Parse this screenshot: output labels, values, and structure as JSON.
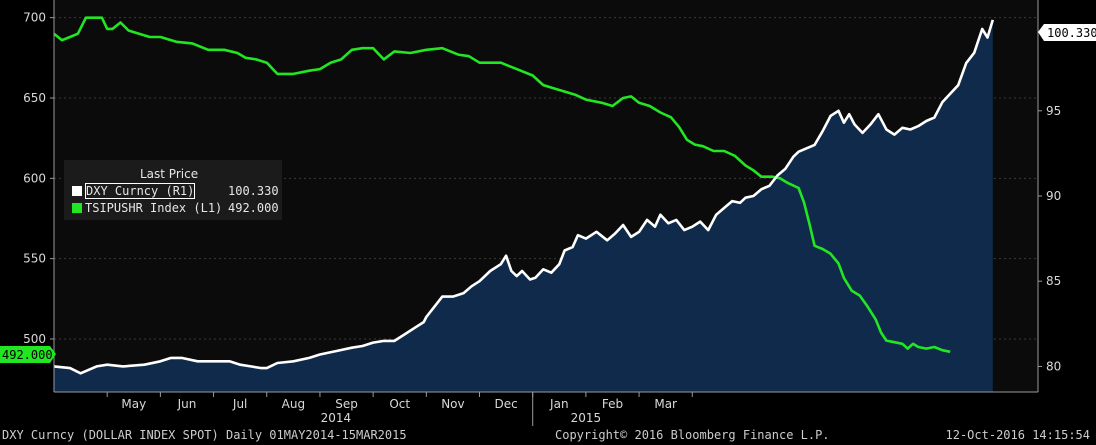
{
  "footer": {
    "left": "DXY Curncy (DOLLAR INDEX SPOT)  Daily 01MAY2014-15MAR2015",
    "center": "Copyright© 2016 Bloomberg Finance L.P.",
    "right": "12-Oct-2016 14:15:54"
  },
  "legend": {
    "title": "Last Price",
    "items": [
      {
        "label": "DXY Curncy  (R1)",
        "value": "100.330",
        "color": "#ffffff"
      },
      {
        "label": "TSIPUSHR Index  (L1)",
        "value": "492.000",
        "color": "#22e622"
      }
    ]
  },
  "last_value_tags": {
    "right": "100.330",
    "left": "492.000"
  },
  "colors": {
    "background": "#000000",
    "plot_bg": "#0b0b0b",
    "area": "#0f2a4a",
    "dxy_line": "#ffffff",
    "tsi_line": "#22e622"
  },
  "chart_data": {
    "type": "line",
    "x_ticks": [
      "May",
      "Jun",
      "Jul",
      "Aug",
      "Sep",
      "Oct",
      "Nov",
      "Dec",
      "Jan",
      "Feb",
      "Mar"
    ],
    "x_year_labels": [
      "2014",
      "2015"
    ],
    "y_left": {
      "ticks": [
        500,
        550,
        600,
        650,
        700
      ],
      "range": [
        467,
        711
      ]
    },
    "y_right": {
      "ticks": [
        80,
        85,
        90,
        95
      ],
      "range": [
        78.5,
        101.5
      ]
    },
    "series": [
      {
        "name": "DXY Curncy (R1)",
        "axis": "right",
        "style": "area",
        "points": [
          [
            0.0,
            80.0
          ],
          [
            0.3,
            79.9
          ],
          [
            0.5,
            79.6
          ],
          [
            0.8,
            80.0
          ],
          [
            1.0,
            80.1
          ],
          [
            1.3,
            80.0
          ],
          [
            1.7,
            80.1
          ],
          [
            2.0,
            80.3
          ],
          [
            2.2,
            80.5
          ],
          [
            2.4,
            80.5
          ],
          [
            2.7,
            80.3
          ],
          [
            3.0,
            80.3
          ],
          [
            3.3,
            80.3
          ],
          [
            3.5,
            80.1
          ],
          [
            3.7,
            80.0
          ],
          [
            3.9,
            79.9
          ],
          [
            4.0,
            79.9
          ],
          [
            4.2,
            80.2
          ],
          [
            4.5,
            80.3
          ],
          [
            4.8,
            80.5
          ],
          [
            5.0,
            80.7
          ],
          [
            5.3,
            80.9
          ],
          [
            5.6,
            81.1
          ],
          [
            5.8,
            81.2
          ],
          [
            6.0,
            81.4
          ],
          [
            6.2,
            81.5
          ],
          [
            6.4,
            81.5
          ],
          [
            6.6,
            81.9
          ],
          [
            6.8,
            82.3
          ],
          [
            6.95,
            82.6
          ],
          [
            7.0,
            82.9
          ],
          [
            7.15,
            83.5
          ],
          [
            7.3,
            84.1
          ],
          [
            7.5,
            84.1
          ],
          [
            7.7,
            84.3
          ],
          [
            7.85,
            84.7
          ],
          [
            8.0,
            85.0
          ],
          [
            8.2,
            85.6
          ],
          [
            8.4,
            86.0
          ],
          [
            8.5,
            86.5
          ],
          [
            8.6,
            85.6
          ],
          [
            8.7,
            85.3
          ],
          [
            8.8,
            85.6
          ],
          [
            8.95,
            85.1
          ],
          [
            9.05,
            85.2
          ],
          [
            9.2,
            85.7
          ],
          [
            9.35,
            85.5
          ],
          [
            9.5,
            86.0
          ],
          [
            9.6,
            86.8
          ],
          [
            9.75,
            87.0
          ],
          [
            9.85,
            87.7
          ],
          [
            10.0,
            87.5
          ],
          [
            10.2,
            87.9
          ],
          [
            10.4,
            87.4
          ],
          [
            10.55,
            87.8
          ],
          [
            10.7,
            88.3
          ],
          [
            10.85,
            87.6
          ],
          [
            11.0,
            87.9
          ],
          [
            11.15,
            88.6
          ],
          [
            11.3,
            88.2
          ],
          [
            11.4,
            88.9
          ],
          [
            11.55,
            88.4
          ],
          [
            11.7,
            88.6
          ],
          [
            11.85,
            88.0
          ],
          [
            12.0,
            88.2
          ],
          [
            12.15,
            88.5
          ],
          [
            12.3,
            88.0
          ],
          [
            12.45,
            88.9
          ],
          [
            12.6,
            89.3
          ],
          [
            12.75,
            89.7
          ],
          [
            12.9,
            89.6
          ],
          [
            13.0,
            89.9
          ],
          [
            13.15,
            90.0
          ],
          [
            13.3,
            90.4
          ],
          [
            13.45,
            90.6
          ],
          [
            13.6,
            91.2
          ],
          [
            13.75,
            91.6
          ],
          [
            13.9,
            92.3
          ],
          [
            14.0,
            92.6
          ],
          [
            14.15,
            92.8
          ],
          [
            14.3,
            93.0
          ],
          [
            14.45,
            93.8
          ],
          [
            14.6,
            94.7
          ],
          [
            14.75,
            95.0
          ],
          [
            14.85,
            94.3
          ],
          [
            14.95,
            94.8
          ],
          [
            15.05,
            94.2
          ],
          [
            15.2,
            93.7
          ],
          [
            15.35,
            94.2
          ],
          [
            15.5,
            94.8
          ],
          [
            15.65,
            93.9
          ],
          [
            15.8,
            93.6
          ],
          [
            15.95,
            94.0
          ],
          [
            16.1,
            93.9
          ],
          [
            16.25,
            94.1
          ],
          [
            16.4,
            94.4
          ],
          [
            16.55,
            94.6
          ],
          [
            16.7,
            95.5
          ],
          [
            16.85,
            96.0
          ],
          [
            17.0,
            96.5
          ],
          [
            17.15,
            97.8
          ],
          [
            17.3,
            98.4
          ],
          [
            17.45,
            99.8
          ],
          [
            17.55,
            99.3
          ],
          [
            17.65,
            100.33
          ]
        ]
      },
      {
        "name": "TSIPUSHR Index (L1)",
        "axis": "left",
        "style": "line",
        "points": [
          [
            0.0,
            690
          ],
          [
            0.15,
            686
          ],
          [
            0.3,
            688
          ],
          [
            0.45,
            690
          ],
          [
            0.6,
            700
          ],
          [
            0.75,
            700
          ],
          [
            0.9,
            700
          ],
          [
            1.0,
            693
          ],
          [
            1.1,
            693
          ],
          [
            1.25,
            697
          ],
          [
            1.4,
            692
          ],
          [
            1.6,
            690
          ],
          [
            1.8,
            688
          ],
          [
            2.0,
            688
          ],
          [
            2.3,
            685
          ],
          [
            2.6,
            684
          ],
          [
            2.9,
            680
          ],
          [
            3.2,
            680
          ],
          [
            3.45,
            678
          ],
          [
            3.6,
            675
          ],
          [
            3.8,
            674
          ],
          [
            4.0,
            672
          ],
          [
            4.2,
            665
          ],
          [
            4.5,
            665
          ],
          [
            4.8,
            667
          ],
          [
            5.0,
            668
          ],
          [
            5.2,
            672
          ],
          [
            5.4,
            674
          ],
          [
            5.6,
            680
          ],
          [
            5.8,
            681
          ],
          [
            6.0,
            681
          ],
          [
            6.2,
            674
          ],
          [
            6.4,
            679
          ],
          [
            6.7,
            678
          ],
          [
            7.0,
            680
          ],
          [
            7.3,
            681
          ],
          [
            7.6,
            677
          ],
          [
            7.8,
            676
          ],
          [
            8.0,
            672
          ],
          [
            8.4,
            672
          ],
          [
            8.7,
            668
          ],
          [
            9.0,
            664
          ],
          [
            9.2,
            658
          ],
          [
            9.5,
            655
          ],
          [
            9.8,
            652
          ],
          [
            10.0,
            649
          ],
          [
            10.3,
            647
          ],
          [
            10.5,
            645
          ],
          [
            10.7,
            650
          ],
          [
            10.85,
            651
          ],
          [
            11.0,
            647
          ],
          [
            11.2,
            645
          ],
          [
            11.4,
            641
          ],
          [
            11.6,
            638
          ],
          [
            11.75,
            632
          ],
          [
            11.9,
            624
          ],
          [
            12.05,
            621
          ],
          [
            12.2,
            620
          ],
          [
            12.4,
            617
          ],
          [
            12.6,
            617
          ],
          [
            12.8,
            614
          ],
          [
            13.0,
            608
          ],
          [
            13.15,
            605
          ],
          [
            13.3,
            601
          ],
          [
            13.5,
            601
          ],
          [
            13.65,
            600
          ],
          [
            13.8,
            597
          ],
          [
            14.0,
            594
          ],
          [
            14.1,
            585
          ],
          [
            14.2,
            572
          ],
          [
            14.3,
            558
          ],
          [
            14.45,
            556
          ],
          [
            14.6,
            553
          ],
          [
            14.75,
            547
          ],
          [
            14.85,
            538
          ],
          [
            15.0,
            530
          ],
          [
            15.15,
            527
          ],
          [
            15.3,
            520
          ],
          [
            15.45,
            512
          ],
          [
            15.55,
            504
          ],
          [
            15.65,
            499
          ],
          [
            15.8,
            498
          ],
          [
            15.95,
            497
          ],
          [
            16.05,
            494
          ],
          [
            16.15,
            497
          ],
          [
            16.25,
            495
          ],
          [
            16.4,
            494
          ],
          [
            16.55,
            495
          ],
          [
            16.7,
            493
          ],
          [
            16.85,
            492.0
          ]
        ]
      }
    ]
  }
}
